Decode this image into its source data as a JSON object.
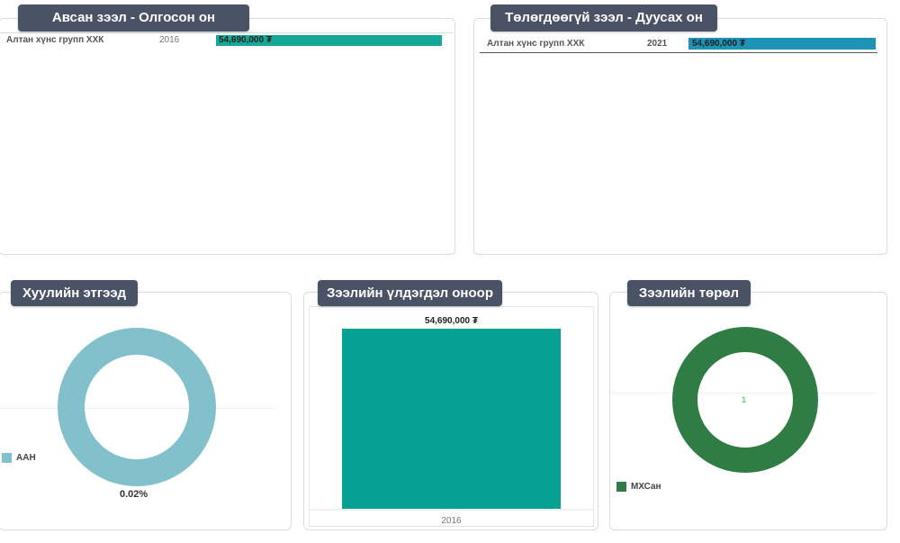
{
  "panels": {
    "loans_received": {
      "title": "Авсан зээл - Олгосон он",
      "row": {
        "name": "Алтан хүнс групп ХХК",
        "year": "2016",
        "value_label": "54,690,000 ₮"
      },
      "bar_color": "#15a898"
    },
    "unpaid_loans": {
      "title": "Төлөгдөөгүй зээл - Дуусах он",
      "row": {
        "name": "Алтан хүнс групп ХХК",
        "year": "2021",
        "value_label": "54,690,000 ₮"
      },
      "bar_color": "#1d93b8"
    },
    "legal_entity": {
      "title": "Хуулийн этгээд",
      "legend": "ААН",
      "percent_label": "0.02%",
      "color": "#82c1cc"
    },
    "loan_balance": {
      "title": "Зээлийн үлдэгдэл оноор",
      "color": "#05a293"
    },
    "loan_type": {
      "title": "Зээлийн төрөл",
      "legend": "МХСан",
      "center_label": "1",
      "color": "#2f7d45"
    }
  },
  "chart_data": [
    {
      "type": "table",
      "title": "Авсан зээл - Олгосон он",
      "rows": [
        {
          "name": "Алтан хүнс групп ХХК",
          "year": 2016,
          "value": 54690000
        }
      ]
    },
    {
      "type": "table",
      "title": "Төлөгдөөгүй зээл - Дуусах он",
      "rows": [
        {
          "name": "Алтан хүнс групп ХХК",
          "year": 2021,
          "value": 54690000
        }
      ]
    },
    {
      "type": "pie",
      "title": "Хуулийн этгээд",
      "categories": [
        "ААН"
      ],
      "values": [
        100
      ],
      "labels": [
        "0.02%"
      ]
    },
    {
      "type": "bar",
      "title": "Зээлийн үлдэгдэл оноор",
      "categories": [
        "2016"
      ],
      "values": [
        54690000
      ],
      "value_labels": [
        "54,690,000 ₮"
      ],
      "ylim": [
        0,
        54690000
      ]
    },
    {
      "type": "pie",
      "title": "Зээлийн төрөл",
      "categories": [
        "МХСан"
      ],
      "values": [
        1
      ],
      "labels": [
        "1"
      ]
    }
  ]
}
